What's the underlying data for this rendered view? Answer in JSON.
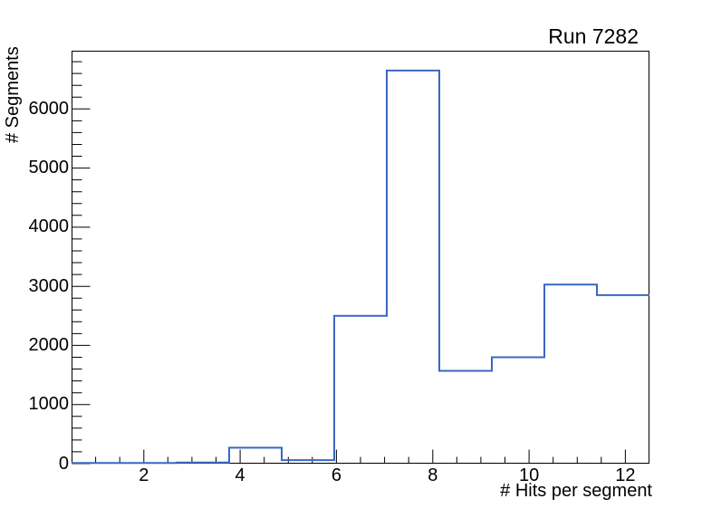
{
  "window": {
    "background_color": "#ffffff",
    "kind": "root-canvas-histogram"
  },
  "chart_data": {
    "type": "histogram-step",
    "title": "Run 7282",
    "xlabel": "# Hits per segment",
    "ylabel": "# Segments",
    "x_range": [
      0.5,
      12.5
    ],
    "n_bins": 11,
    "bin_width": 1.0909,
    "bin_edges": [
      0.5,
      1.591,
      2.682,
      3.773,
      4.864,
      5.955,
      7.045,
      8.136,
      9.227,
      10.318,
      11.409,
      12.5
    ],
    "bin_centers": [
      1.045,
      2.136,
      3.227,
      4.318,
      5.409,
      6.5,
      7.591,
      8.682,
      9.773,
      10.864,
      11.955
    ],
    "values": [
      10,
      10,
      20,
      270,
      60,
      2500,
      6650,
      1570,
      1800,
      3030,
      2850
    ],
    "ylim": [
      0,
      6985
    ],
    "x_major_ticks": [
      2,
      4,
      6,
      8,
      10,
      12
    ],
    "x_minor_step": 0.5,
    "y_major_ticks": [
      0,
      1000,
      2000,
      3000,
      4000,
      5000,
      6000
    ],
    "y_minor_step": 200,
    "grid": false,
    "legend": false,
    "line_color": "#3a67c4",
    "line_width": 2,
    "axis_color": "#000000",
    "text_color": "#000000"
  }
}
